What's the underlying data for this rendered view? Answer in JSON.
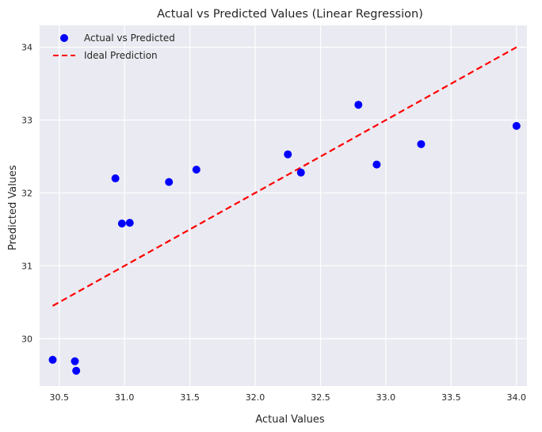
{
  "chart_data": {
    "type": "scatter",
    "title": "Actual vs Predicted Values (Linear Regression)",
    "xlabel": "Actual Values",
    "ylabel": "Predicted Values",
    "xlim": [
      30.35,
      34.08
    ],
    "ylim": [
      29.35,
      34.3
    ],
    "xticks": [
      30.5,
      31.0,
      31.5,
      32.0,
      32.5,
      33.0,
      33.5,
      34.0
    ],
    "xtick_labels": [
      "30.5",
      "31.0",
      "31.5",
      "32.0",
      "32.5",
      "33.0",
      "33.5",
      "34.0"
    ],
    "yticks": [
      30,
      31,
      32,
      33,
      34
    ],
    "ytick_labels": [
      "30",
      "31",
      "32",
      "33",
      "34"
    ],
    "grid": true,
    "legend_position": "top-left",
    "series": [
      {
        "name": "Actual vs Predicted",
        "kind": "scatter",
        "color": "#0000ff",
        "x": [
          30.45,
          30.62,
          30.63,
          30.93,
          30.98,
          31.04,
          31.34,
          31.55,
          32.25,
          32.35,
          32.79,
          32.93,
          33.27,
          34.0
        ],
        "y": [
          29.71,
          29.69,
          29.56,
          32.2,
          31.58,
          31.59,
          32.15,
          32.32,
          32.53,
          32.28,
          33.21,
          32.39,
          32.67,
          32.92
        ]
      },
      {
        "name": "Ideal Prediction",
        "kind": "line",
        "style": "dashed",
        "color": "#ff0000",
        "x": [
          30.45,
          34.0
        ],
        "y": [
          30.45,
          34.0
        ]
      }
    ]
  }
}
